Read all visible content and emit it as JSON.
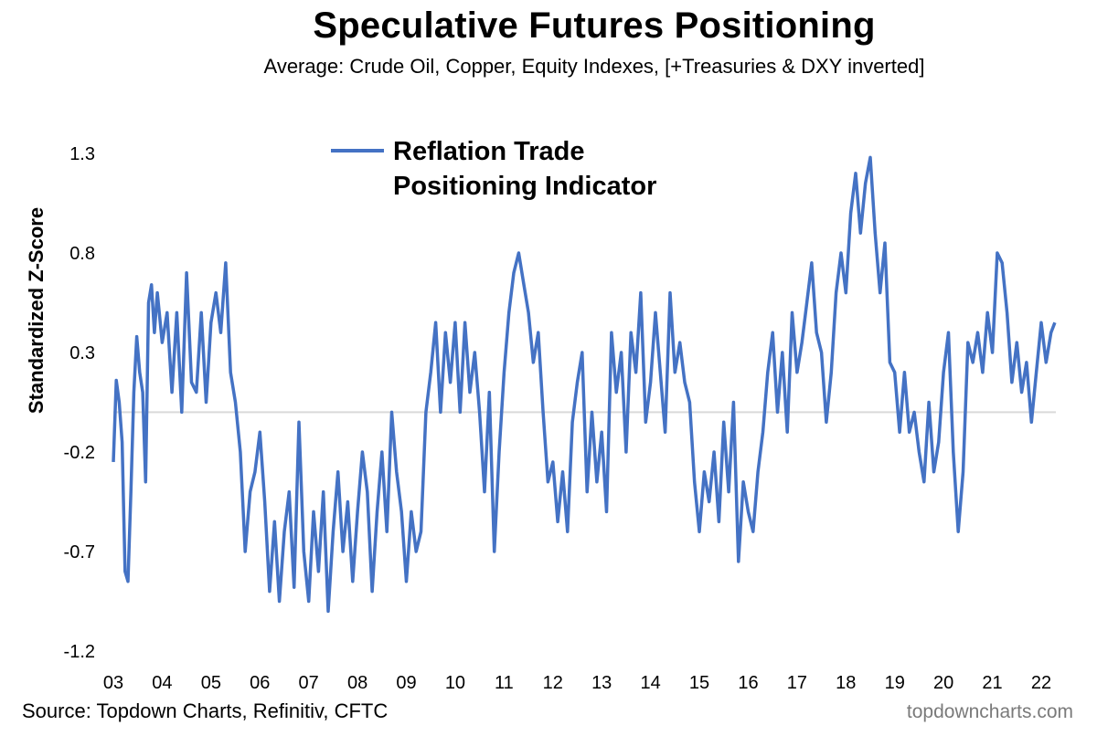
{
  "header": {
    "title": "Speculative Futures Positioning",
    "subtitle": "Average: Crude Oil, Copper, Equity Indexes, [+Treasuries & DXY inverted]"
  },
  "footer": {
    "source": "Source: Topdown Charts, Refinitiv, CFTC",
    "brand": "topdowncharts.com"
  },
  "chart_data": {
    "type": "line",
    "ylabel": "Standardized Z-Score",
    "ylim": [
      -1.2,
      1.3
    ],
    "yticks": [
      "1.3",
      "0.8",
      "0.3",
      "-0.2",
      "-0.7",
      "-1.2"
    ],
    "ytick_values": [
      1.3,
      0.8,
      0.3,
      -0.2,
      -0.7,
      -1.2
    ],
    "xlim": [
      2003.0,
      2022.3
    ],
    "xticks": [
      "03",
      "04",
      "05",
      "06",
      "07",
      "08",
      "09",
      "10",
      "11",
      "12",
      "13",
      "14",
      "15",
      "16",
      "17",
      "18",
      "19",
      "20",
      "21",
      "22"
    ],
    "xtick_values": [
      2003,
      2004,
      2005,
      2006,
      2007,
      2008,
      2009,
      2010,
      2011,
      2012,
      2013,
      2014,
      2015,
      2016,
      2017,
      2018,
      2019,
      2020,
      2021,
      2022
    ],
    "reference_line": 0,
    "legend": "top-center",
    "grid": false,
    "colors": {
      "series": "#4472c4",
      "zero_line": "#d9d9d9"
    },
    "series": [
      {
        "name": "Reflation Trade Positioning Indicator",
        "x": [
          2003.0,
          2003.06,
          2003.12,
          2003.18,
          2003.24,
          2003.3,
          2003.36,
          2003.42,
          2003.48,
          2003.54,
          2003.6,
          2003.66,
          2003.72,
          2003.78,
          2003.84,
          2003.9,
          2004.0,
          2004.1,
          2004.2,
          2004.3,
          2004.4,
          2004.5,
          2004.6,
          2004.7,
          2004.8,
          2004.9,
          2005.0,
          2005.1,
          2005.2,
          2005.3,
          2005.4,
          2005.5,
          2005.6,
          2005.7,
          2005.8,
          2005.9,
          2006.0,
          2006.1,
          2006.2,
          2006.3,
          2006.4,
          2006.5,
          2006.6,
          2006.7,
          2006.8,
          2006.9,
          2007.0,
          2007.1,
          2007.2,
          2007.3,
          2007.4,
          2007.5,
          2007.6,
          2007.7,
          2007.8,
          2007.9,
          2008.0,
          2008.1,
          2008.2,
          2008.3,
          2008.4,
          2008.5,
          2008.6,
          2008.7,
          2008.8,
          2008.9,
          2009.0,
          2009.1,
          2009.2,
          2009.3,
          2009.4,
          2009.5,
          2009.6,
          2009.7,
          2009.8,
          2009.9,
          2010.0,
          2010.1,
          2010.2,
          2010.3,
          2010.4,
          2010.5,
          2010.6,
          2010.7,
          2010.8,
          2010.9,
          2011.0,
          2011.1,
          2011.2,
          2011.3,
          2011.4,
          2011.5,
          2011.6,
          2011.7,
          2011.8,
          2011.9,
          2012.0,
          2012.1,
          2012.2,
          2012.3,
          2012.4,
          2012.5,
          2012.6,
          2012.7,
          2012.8,
          2012.9,
          2013.0,
          2013.1,
          2013.2,
          2013.3,
          2013.4,
          2013.5,
          2013.6,
          2013.7,
          2013.8,
          2013.9,
          2014.0,
          2014.1,
          2014.2,
          2014.3,
          2014.4,
          2014.5,
          2014.6,
          2014.7,
          2014.8,
          2014.9,
          2015.0,
          2015.1,
          2015.2,
          2015.3,
          2015.4,
          2015.5,
          2015.6,
          2015.7,
          2015.8,
          2015.9,
          2016.0,
          2016.1,
          2016.2,
          2016.3,
          2016.4,
          2016.5,
          2016.6,
          2016.7,
          2016.8,
          2016.9,
          2017.0,
          2017.1,
          2017.2,
          2017.3,
          2017.4,
          2017.5,
          2017.6,
          2017.7,
          2017.8,
          2017.9,
          2018.0,
          2018.1,
          2018.2,
          2018.3,
          2018.4,
          2018.5,
          2018.6,
          2018.7,
          2018.8,
          2018.9,
          2019.0,
          2019.1,
          2019.2,
          2019.3,
          2019.4,
          2019.5,
          2019.6,
          2019.7,
          2019.8,
          2019.9,
          2020.0,
          2020.1,
          2020.2,
          2020.3,
          2020.4,
          2020.5,
          2020.6,
          2020.7,
          2020.8,
          2020.9,
          2021.0,
          2021.1,
          2021.2,
          2021.3,
          2021.4,
          2021.5,
          2021.6,
          2021.7,
          2021.8,
          2021.9,
          2022.0,
          2022.1,
          2022.2,
          2022.28
        ],
        "y": [
          -0.25,
          0.16,
          0.05,
          -0.15,
          -0.8,
          -0.85,
          -0.4,
          0.1,
          0.38,
          0.2,
          0.1,
          -0.35,
          0.55,
          0.64,
          0.4,
          0.6,
          0.35,
          0.5,
          0.1,
          0.5,
          0.0,
          0.7,
          0.15,
          0.1,
          0.5,
          0.05,
          0.45,
          0.6,
          0.4,
          0.75,
          0.2,
          0.05,
          -0.2,
          -0.7,
          -0.4,
          -0.3,
          -0.1,
          -0.45,
          -0.9,
          -0.55,
          -0.95,
          -0.6,
          -0.4,
          -0.88,
          -0.05,
          -0.7,
          -0.95,
          -0.5,
          -0.8,
          -0.4,
          -1.0,
          -0.6,
          -0.3,
          -0.7,
          -0.45,
          -0.85,
          -0.5,
          -0.2,
          -0.4,
          -0.9,
          -0.5,
          -0.2,
          -0.6,
          0.0,
          -0.3,
          -0.5,
          -0.85,
          -0.5,
          -0.7,
          -0.6,
          0.0,
          0.2,
          0.45,
          0.0,
          0.4,
          0.15,
          0.45,
          0.0,
          0.45,
          0.1,
          0.3,
          0.0,
          -0.4,
          0.1,
          -0.7,
          -0.2,
          0.2,
          0.5,
          0.7,
          0.8,
          0.65,
          0.5,
          0.25,
          0.4,
          0.0,
          -0.35,
          -0.25,
          -0.55,
          -0.3,
          -0.6,
          -0.05,
          0.15,
          0.3,
          -0.4,
          0.0,
          -0.35,
          -0.1,
          -0.5,
          0.4,
          0.1,
          0.3,
          -0.2,
          0.4,
          0.2,
          0.6,
          -0.05,
          0.15,
          0.5,
          0.2,
          -0.1,
          0.6,
          0.2,
          0.35,
          0.15,
          0.05,
          -0.35,
          -0.6,
          -0.3,
          -0.45,
          -0.2,
          -0.55,
          -0.05,
          -0.4,
          0.05,
          -0.75,
          -0.35,
          -0.5,
          -0.6,
          -0.3,
          -0.1,
          0.2,
          0.4,
          0.0,
          0.3,
          -0.1,
          0.5,
          0.2,
          0.35,
          0.55,
          0.75,
          0.4,
          0.3,
          -0.05,
          0.2,
          0.6,
          0.8,
          0.6,
          1.0,
          1.2,
          0.9,
          1.15,
          1.28,
          0.9,
          0.6,
          0.85,
          0.25,
          0.2,
          -0.1,
          0.2,
          -0.1,
          0.0,
          -0.2,
          -0.35,
          0.05,
          -0.3,
          -0.15,
          0.2,
          0.4,
          -0.2,
          -0.6,
          -0.3,
          0.35,
          0.25,
          0.4,
          0.2,
          0.5,
          0.3,
          0.8,
          0.75,
          0.5,
          0.15,
          0.35,
          0.1,
          0.25,
          -0.05,
          0.2,
          0.45,
          0.25,
          0.4,
          0.45
        ]
      }
    ]
  }
}
